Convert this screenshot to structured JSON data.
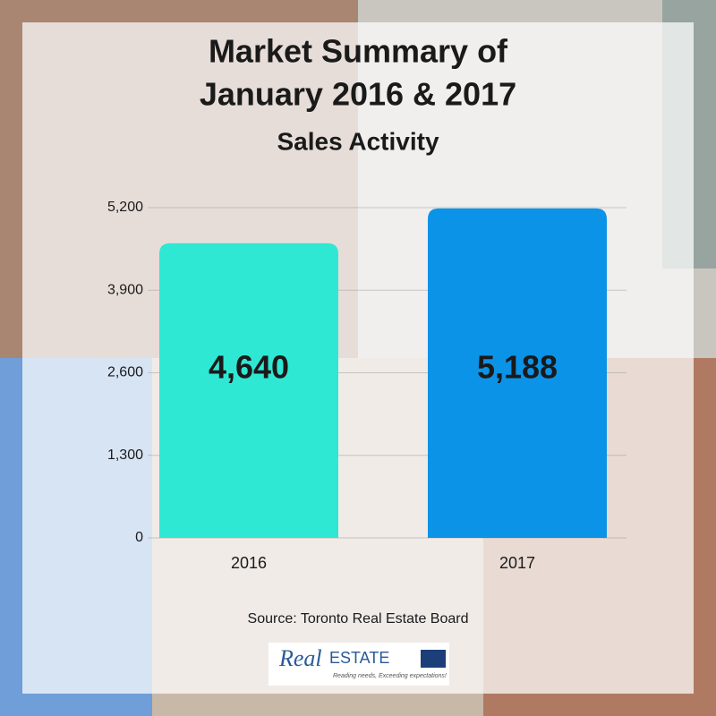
{
  "chart_data": {
    "type": "bar",
    "title": [
      "Market Summary of",
      "January 2016 & 2017"
    ],
    "subtitle": "Sales Activity",
    "categories": [
      "2016",
      "2017"
    ],
    "values": [
      4640,
      5188
    ],
    "value_labels": [
      "4,640",
      "5,188"
    ],
    "colors": [
      "#2ee8d4",
      "#0b93e8"
    ],
    "ylim": [
      0,
      5200
    ],
    "yticks": [
      0,
      {
        "value": 1300,
        "label": "1,300"
      },
      {
        "value": 2600,
        "label": "2,600"
      },
      {
        "value": 3900,
        "label": "3,900"
      },
      {
        "value": 5200,
        "label": "5,200"
      }
    ],
    "grid": true,
    "source": "Source: Toronto Real Estate Board",
    "logo": {
      "brand": "Real",
      "word": "ESTATE",
      "tagline": "Reading needs, Exceeding expectations!"
    }
  }
}
